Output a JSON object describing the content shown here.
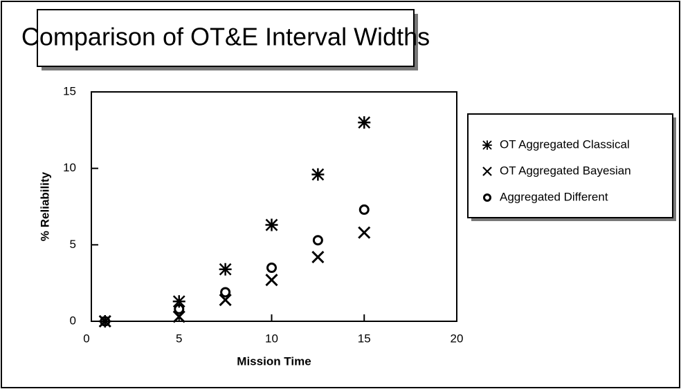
{
  "chart_data": {
    "type": "scatter",
    "title": "Comparison of OT&E Interval Widths",
    "x_label": "Mission Time",
    "y_label": "% Reliability",
    "x": [
      1,
      5,
      7.5,
      10,
      12.5,
      15
    ],
    "series": [
      {
        "name": "OT Aggregated Classical",
        "color": "#000000",
        "marker": "asterisk",
        "values": [
          0,
          1.3,
          3.4,
          6.3,
          9.6,
          13.0
        ]
      },
      {
        "name": "OT Aggregated Bayesian",
        "color": "#000000",
        "marker": "x",
        "values": [
          0,
          0.3,
          1.4,
          2.7,
          4.2,
          5.8
        ]
      },
      {
        "name": "Aggregated Different",
        "color": "#000000",
        "marker": "circle",
        "values": [
          0,
          0.8,
          1.9,
          3.5,
          5.3,
          7.3
        ]
      }
    ],
    "xlim": [
      0,
      20
    ],
    "xticks": [
      0,
      5,
      10,
      15,
      20
    ],
    "ylim": [
      0,
      15
    ],
    "yticks": [
      0,
      5,
      10,
      15
    ]
  }
}
